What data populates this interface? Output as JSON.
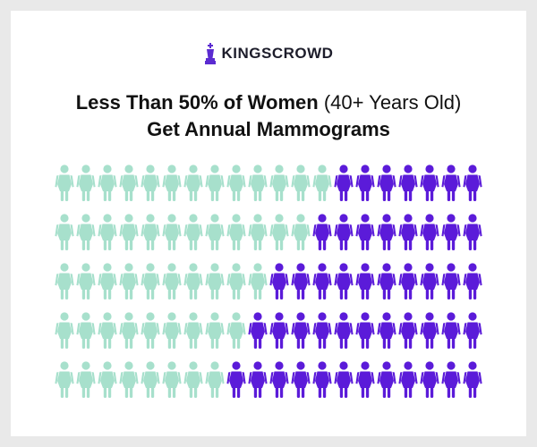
{
  "brand": {
    "name": "KINGSCROWD",
    "icon": "chess-king-icon",
    "color": "#5b2bd1"
  },
  "title": {
    "line1_bold": "Less Than 50% of Women",
    "line1_light": "(40+ Years Old)",
    "line2": "Get Annual Mammograms"
  },
  "chart_data": {
    "type": "pictograph",
    "rows": 5,
    "icons_per_row": 20,
    "total_icons": 100,
    "icon": "woman-icon",
    "series": [
      {
        "values": [
          13,
          12,
          10,
          9,
          8
        ],
        "color": "#a7e0cc"
      },
      {
        "values": [
          7,
          8,
          10,
          11,
          12
        ],
        "color": "#5b1bd9"
      }
    ]
  }
}
